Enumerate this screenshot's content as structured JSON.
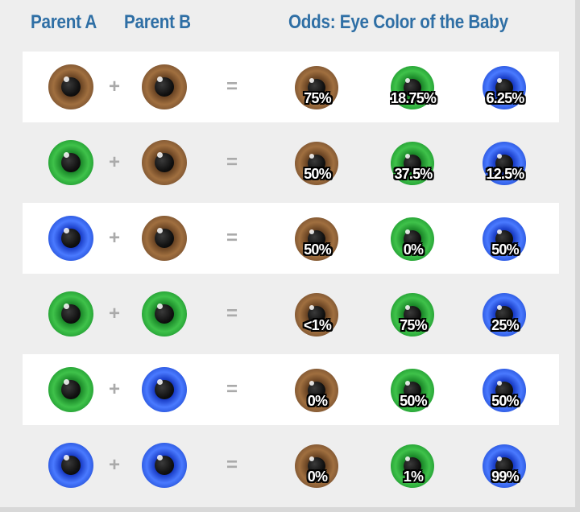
{
  "headers": {
    "parent_a": "Parent A",
    "parent_b": "Parent B",
    "odds": "Odds: Eye Color of the Baby"
  },
  "operators": {
    "plus": "+",
    "equals": "="
  },
  "colors": {
    "header_text": "#2f6fa5",
    "brown_eye": "#8a5a2e",
    "green_eye": "#2fae3a",
    "blue_eye": "#2a52e0",
    "row_light": "#ffffff",
    "row_dark": "#eeeeee"
  },
  "odds_colors": [
    "brown",
    "green",
    "blue"
  ],
  "rows": [
    {
      "parent_a": "brown",
      "parent_b": "brown",
      "odds": [
        "75%",
        "18.75%",
        "6.25%"
      ]
    },
    {
      "parent_a": "green",
      "parent_b": "brown",
      "odds": [
        "50%",
        "37.5%",
        "12.5%"
      ]
    },
    {
      "parent_a": "blue",
      "parent_b": "brown",
      "odds": [
        "50%",
        "0%",
        "50%"
      ]
    },
    {
      "parent_a": "green",
      "parent_b": "green",
      "odds": [
        "<1%",
        "75%",
        "25%"
      ]
    },
    {
      "parent_a": "green",
      "parent_b": "blue",
      "odds": [
        "0%",
        "50%",
        "50%"
      ]
    },
    {
      "parent_a": "blue",
      "parent_b": "blue",
      "odds": [
        "0%",
        "1%",
        "99%"
      ]
    }
  ]
}
